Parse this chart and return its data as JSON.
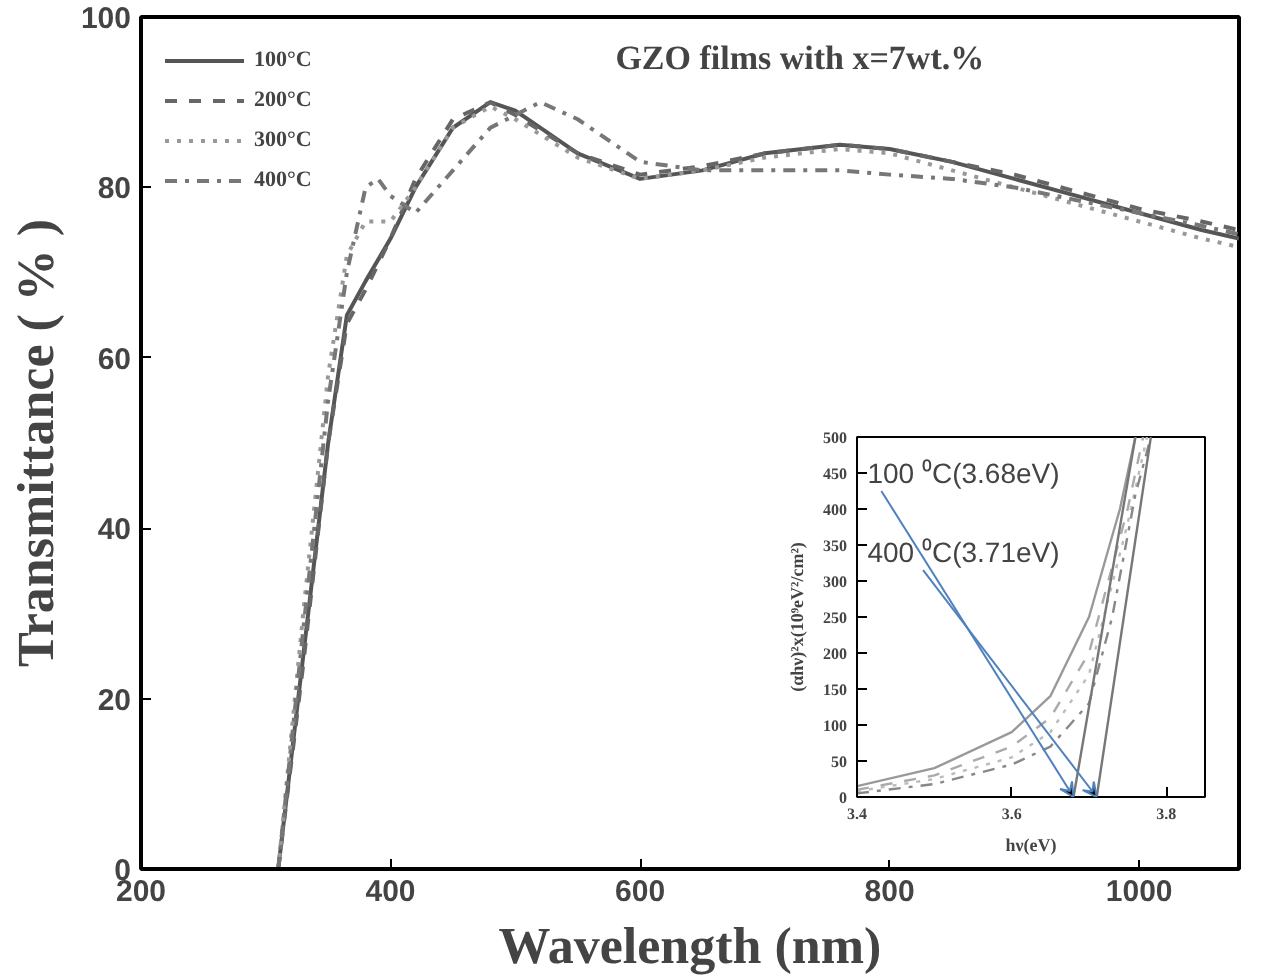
{
  "chart_data": [
    {
      "type": "line",
      "title": "GZO films with x=7wt.%",
      "xlabel": "Wavelength (nm)",
      "ylabel": "Transmittance ( % )",
      "xlim": [
        200,
        1080
      ],
      "ylim": [
        0,
        100
      ],
      "xticks": [
        200,
        400,
        600,
        800,
        1000
      ],
      "yticks": [
        0,
        20,
        40,
        60,
        80,
        100
      ],
      "grid": false,
      "legend": "top left",
      "marker": "none",
      "series": [
        {
          "name": "100°C",
          "color": "#555555",
          "line_style": "solid",
          "x": [
            310,
            330,
            350,
            365,
            380,
            400,
            420,
            450,
            480,
            500,
            550,
            600,
            650,
            700,
            760,
            800,
            850,
            900,
            950,
            1000,
            1050,
            1080
          ],
          "values": [
            0,
            25,
            50,
            65,
            69,
            74,
            80,
            87,
            90,
            89,
            84,
            81,
            82,
            84,
            85,
            84.5,
            83,
            81,
            79,
            77,
            75,
            74
          ]
        },
        {
          "name": "200°C",
          "color": "#666666",
          "line_style": "dashed",
          "x": [
            310,
            330,
            350,
            365,
            380,
            400,
            420,
            450,
            480,
            500,
            550,
            600,
            650,
            700,
            760,
            800,
            850,
            900,
            950,
            1000,
            1050,
            1080
          ],
          "values": [
            0,
            24,
            50,
            64,
            68,
            74,
            81,
            88,
            90,
            88.5,
            84,
            81.5,
            82.5,
            84,
            85,
            84.5,
            83,
            81.5,
            79.5,
            77.5,
            76,
            75
          ]
        },
        {
          "name": "300°C",
          "color": "#999999",
          "line_style": "dotted",
          "x": [
            310,
            330,
            350,
            365,
            380,
            400,
            420,
            450,
            480,
            500,
            550,
            600,
            650,
            700,
            760,
            800,
            850,
            900,
            950,
            1000,
            1050,
            1080
          ],
          "values": [
            0,
            30,
            58,
            72,
            76,
            76,
            80,
            87,
            89.5,
            88,
            83.5,
            81,
            82,
            83.5,
            84.5,
            84,
            82,
            80,
            78,
            76,
            74,
            73
          ]
        },
        {
          "name": "400°C",
          "color": "#777777",
          "line_style": "dashdot",
          "x": [
            310,
            330,
            350,
            365,
            380,
            390,
            400,
            420,
            450,
            480,
            520,
            550,
            600,
            650,
            700,
            760,
            800,
            850,
            900,
            950,
            1000,
            1050,
            1080
          ],
          "values": [
            0,
            28,
            55,
            70,
            80,
            81,
            79,
            77,
            82,
            87,
            90,
            88,
            83,
            82,
            82,
            82,
            81.5,
            81,
            80,
            78.5,
            77,
            75.5,
            74.5
          ]
        }
      ]
    },
    {
      "type": "line",
      "xlabel": "hν(eV)",
      "ylabel": "(αhν)²x(10⁹eV²/cm²)",
      "xlim": [
        3.4,
        3.85
      ],
      "ylim": [
        0,
        500
      ],
      "xticks": [
        3.4,
        3.6,
        3.8
      ],
      "yticks": [
        0,
        50,
        100,
        150,
        200,
        250,
        300,
        350,
        400,
        450,
        500
      ],
      "grid": false,
      "marker": "none",
      "annotations": [
        {
          "text": "100 ⁰C(3.68eV)",
          "x": 3.68,
          "y": 0
        },
        {
          "text": "400 ⁰C(3.71eV)",
          "x": 3.71,
          "y": 0
        }
      ],
      "series": [
        {
          "color": "#999999",
          "line_style": "solid",
          "x": [
            3.4,
            3.5,
            3.6,
            3.65,
            3.7,
            3.74,
            3.76
          ],
          "values": [
            15,
            40,
            90,
            140,
            250,
            400,
            500
          ]
        },
        {
          "color": "#aaaaaa",
          "line_style": "dashed",
          "x": [
            3.4,
            3.5,
            3.6,
            3.65,
            3.7,
            3.75,
            3.77
          ],
          "values": [
            10,
            30,
            70,
            110,
            200,
            400,
            500
          ]
        },
        {
          "color": "#bbbbbb",
          "line_style": "dotted",
          "x": [
            3.4,
            3.5,
            3.6,
            3.65,
            3.7,
            3.75,
            3.775
          ],
          "values": [
            8,
            25,
            55,
            90,
            170,
            380,
            500
          ]
        },
        {
          "color": "#888888",
          "line_style": "dashdot",
          "x": [
            3.4,
            3.5,
            3.6,
            3.65,
            3.7,
            3.73,
            3.76,
            3.78
          ],
          "values": [
            5,
            18,
            45,
            70,
            130,
            250,
            420,
            500
          ]
        },
        {
          "color": "#777777",
          "line_style": "solid",
          "x": [
            3.68,
            3.76
          ],
          "values": [
            0,
            500
          ]
        },
        {
          "color": "#777777",
          "line_style": "solid",
          "x": [
            3.71,
            3.78
          ],
          "values": [
            0,
            500
          ]
        }
      ]
    }
  ]
}
